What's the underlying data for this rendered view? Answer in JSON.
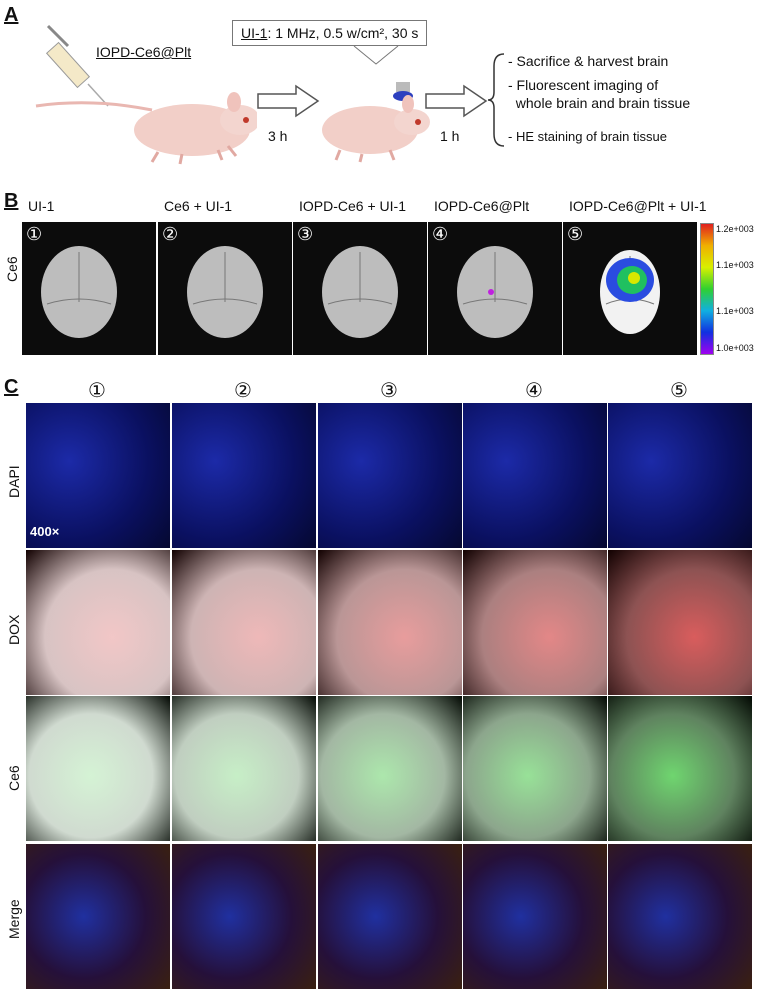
{
  "panel_a": {
    "letter": "A",
    "injection_label": "IOPD-Ce6@Plt",
    "condition": {
      "prefix": "UI-1",
      "text": ": 1 MHz, 0.5 w/cm², 30 s"
    },
    "time1": "3 h",
    "time2": "1 h",
    "steps": [
      "- Sacrifice & harvest brain",
      "- Fluorescent imaging of",
      "  whole brain and brain tissue",
      "- HE staining of brain tissue"
    ]
  },
  "panel_b": {
    "letter": "B",
    "row_label": "Ce6",
    "groups": [
      {
        "num": "①",
        "title": "UI-1"
      },
      {
        "num": "②",
        "title": "Ce6 + UI-1"
      },
      {
        "num": "③",
        "title": "IOPD-Ce6 + UI-1"
      },
      {
        "num": "④",
        "title": "IOPD-Ce6@Plt"
      },
      {
        "num": "⑤",
        "title": "IOPD-Ce6@Plt + UI-1"
      }
    ],
    "colorbar_ticks": [
      "1.2e+003",
      "1.1e+003",
      "1.1e+003",
      "1.0e+003"
    ]
  },
  "panel_c": {
    "letter": "C",
    "columns": [
      "①",
      "②",
      "③",
      "④",
      "⑤"
    ],
    "rows": [
      "DAPI",
      "DOX",
      "Ce6",
      "Merge"
    ],
    "magnification": "400×"
  },
  "colors": {
    "dapi": "#1a2fd0",
    "dox": "#c81212",
    "ce6": "#19c21c",
    "bg_dark": "#070707"
  }
}
